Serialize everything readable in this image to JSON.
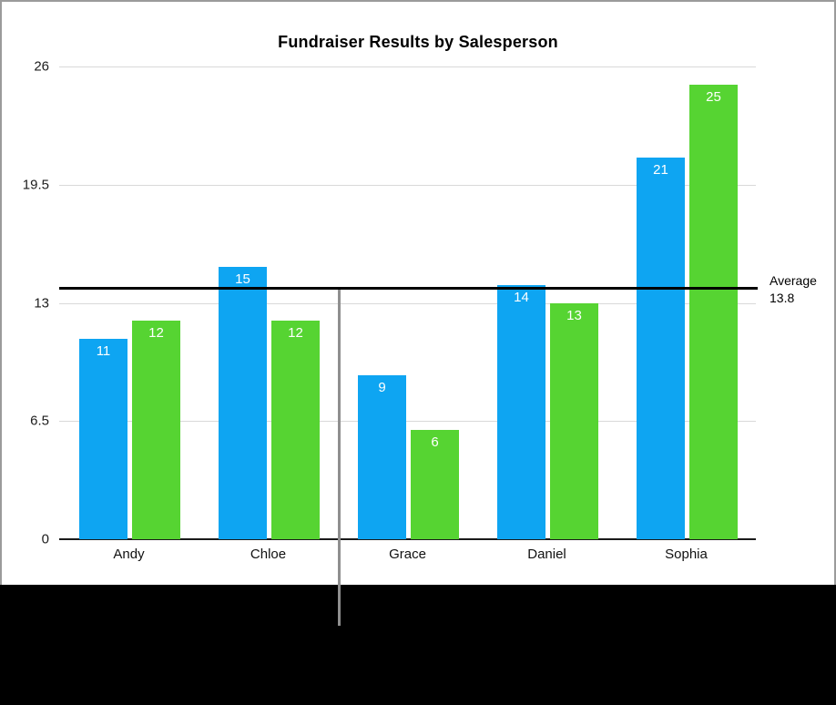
{
  "figure": {
    "border_color": "#9b9b9b",
    "background_color": "#ffffff",
    "masked_area_color": "#000000",
    "callout_line_color": "#8f8f8f"
  },
  "chart_data": {
    "type": "bar",
    "title": "Fundraiser Results by Salesperson",
    "categories": [
      "Andy",
      "Chloe",
      "Grace",
      "Daniel",
      "Sophia"
    ],
    "series": [
      {
        "name": "blue_series",
        "color": "#0ea5f2",
        "values": [
          11,
          15,
          9,
          14,
          21
        ]
      },
      {
        "name": "green_series",
        "color": "#56d432",
        "values": [
          12,
          12,
          6,
          13,
          25
        ]
      }
    ],
    "ylim": [
      0,
      26
    ],
    "yticks": [
      0,
      6.5,
      13,
      19.5,
      26
    ],
    "grid": true,
    "gridline_color": "#d9d9d9",
    "value_labels_position": "inside-top",
    "value_labels_color": "#ffffff",
    "legend": "none",
    "annotations": {
      "average_line": {
        "value": 13.8,
        "color": "#000000",
        "label_line1": "Average",
        "label_line2": "13.8"
      }
    }
  }
}
